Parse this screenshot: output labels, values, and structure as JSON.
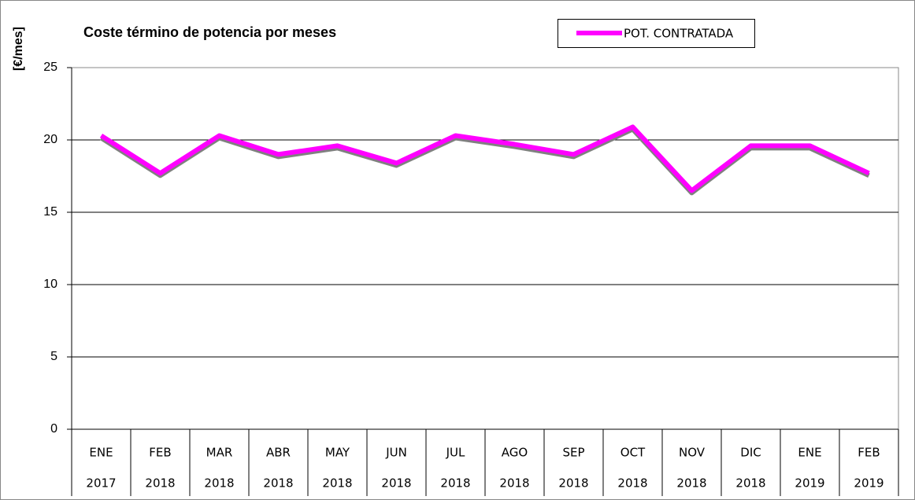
{
  "chart_data": {
    "type": "line",
    "title": "Coste término de potencia por meses",
    "y_label": "[€/mes]",
    "categories": [
      [
        "ENE",
        "2017"
      ],
      [
        "FEB",
        "2018"
      ],
      [
        "MAR",
        "2018"
      ],
      [
        "ABR",
        "2018"
      ],
      [
        "MAY",
        "2018"
      ],
      [
        "JUN",
        "2018"
      ],
      [
        "JUL",
        "2018"
      ],
      [
        "AGO",
        "2018"
      ],
      [
        "SEP",
        "2018"
      ],
      [
        "OCT",
        "2018"
      ],
      [
        "NOV",
        "2018"
      ],
      [
        "DIC",
        "2018"
      ],
      [
        "ENE",
        "2019"
      ],
      [
        "FEB",
        "2019"
      ]
    ],
    "series": [
      {
        "name": "POT. CONTRATADA",
        "color": "#ff00ff",
        "values": [
          20.3,
          17.7,
          20.3,
          19.0,
          19.6,
          18.4,
          20.3,
          19.7,
          19.0,
          20.9,
          16.5,
          19.6,
          19.6,
          17.7
        ]
      }
    ],
    "ylim": [
      0,
      25
    ],
    "yticks": [
      0,
      5,
      10,
      15,
      20,
      25
    ],
    "grid": true,
    "legend": "top"
  }
}
